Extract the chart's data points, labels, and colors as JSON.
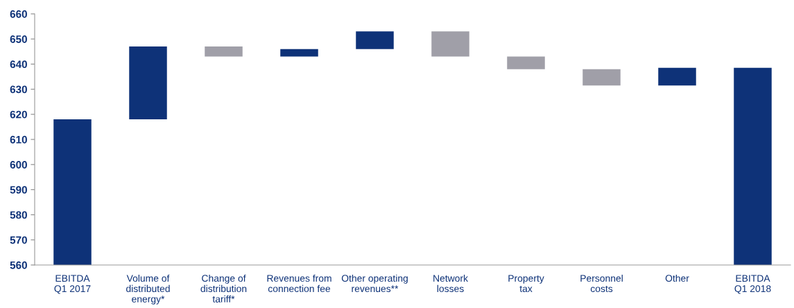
{
  "chart_data": {
    "type": "bar",
    "categories": [
      "EBITDA\nQ1 2017",
      "Volume of\ndistributed\nenergy*",
      "Change of\ndistribution\ntariff*",
      "Revenues from\nconnection fee",
      "Other operating\nrevenues**",
      "Network\nlosses",
      "Property\ntax",
      "Personnel\ncosts",
      "Other",
      "EBITDA\nQ1 2018"
    ],
    "values": [
      58,
      29,
      -4,
      3,
      7,
      -10,
      -5,
      -6.5,
      7,
      78.5
    ],
    "base": [
      560,
      618,
      647,
      643,
      646,
      653,
      643,
      638,
      631.5,
      560
    ],
    "colors": [
      "#0e3278",
      "#0e3278",
      "#a09fa8",
      "#0e3278",
      "#0e3278",
      "#a09fa8",
      "#a09fa8",
      "#a09fa8",
      "#0e3278",
      "#0e3278"
    ],
    "ylim": [
      560,
      660
    ],
    "yticks": [
      560,
      570,
      580,
      590,
      600,
      610,
      620,
      630,
      640,
      650,
      660
    ],
    "grid": false,
    "legend": false
  }
}
